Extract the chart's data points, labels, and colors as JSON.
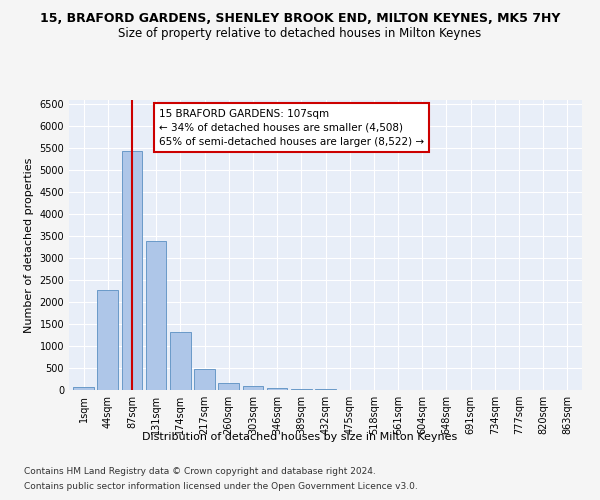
{
  "title1": "15, BRAFORD GARDENS, SHENLEY BROOK END, MILTON KEYNES, MK5 7HY",
  "title2": "Size of property relative to detached houses in Milton Keynes",
  "xlabel": "Distribution of detached houses by size in Milton Keynes",
  "ylabel": "Number of detached properties",
  "footnote1": "Contains HM Land Registry data © Crown copyright and database right 2024.",
  "footnote2": "Contains public sector information licensed under the Open Government Licence v3.0.",
  "annotation_line1": "15 BRAFORD GARDENS: 107sqm",
  "annotation_line2": "← 34% of detached houses are smaller (4,508)",
  "annotation_line3": "65% of semi-detached houses are larger (8,522) →",
  "bar_labels": [
    "1sqm",
    "44sqm",
    "87sqm",
    "131sqm",
    "174sqm",
    "217sqm",
    "260sqm",
    "303sqm",
    "346sqm",
    "389sqm",
    "432sqm",
    "475sqm",
    "518sqm",
    "561sqm",
    "604sqm",
    "648sqm",
    "691sqm",
    "734sqm",
    "777sqm",
    "820sqm",
    "863sqm"
  ],
  "bar_values": [
    70,
    2280,
    5430,
    3380,
    1320,
    480,
    165,
    80,
    55,
    30,
    15,
    10,
    5,
    5,
    0,
    0,
    0,
    0,
    0,
    0,
    0
  ],
  "bar_color": "#aec6e8",
  "bar_edge_color": "#5a8fc2",
  "vline_x_index": 2,
  "vline_color": "#cc0000",
  "annotation_box_color": "#cc0000",
  "ylim": [
    0,
    6600
  ],
  "yticks": [
    0,
    500,
    1000,
    1500,
    2000,
    2500,
    3000,
    3500,
    4000,
    4500,
    5000,
    5500,
    6000,
    6500
  ],
  "fig_bg_color": "#f5f5f5",
  "ax_bg_color": "#e8eef8",
  "grid_color": "#ffffff",
  "title1_fontsize": 9,
  "title2_fontsize": 8.5,
  "axis_label_fontsize": 8,
  "tick_fontsize": 7,
  "annotation_fontsize": 7.5,
  "footnote_fontsize": 6.5
}
